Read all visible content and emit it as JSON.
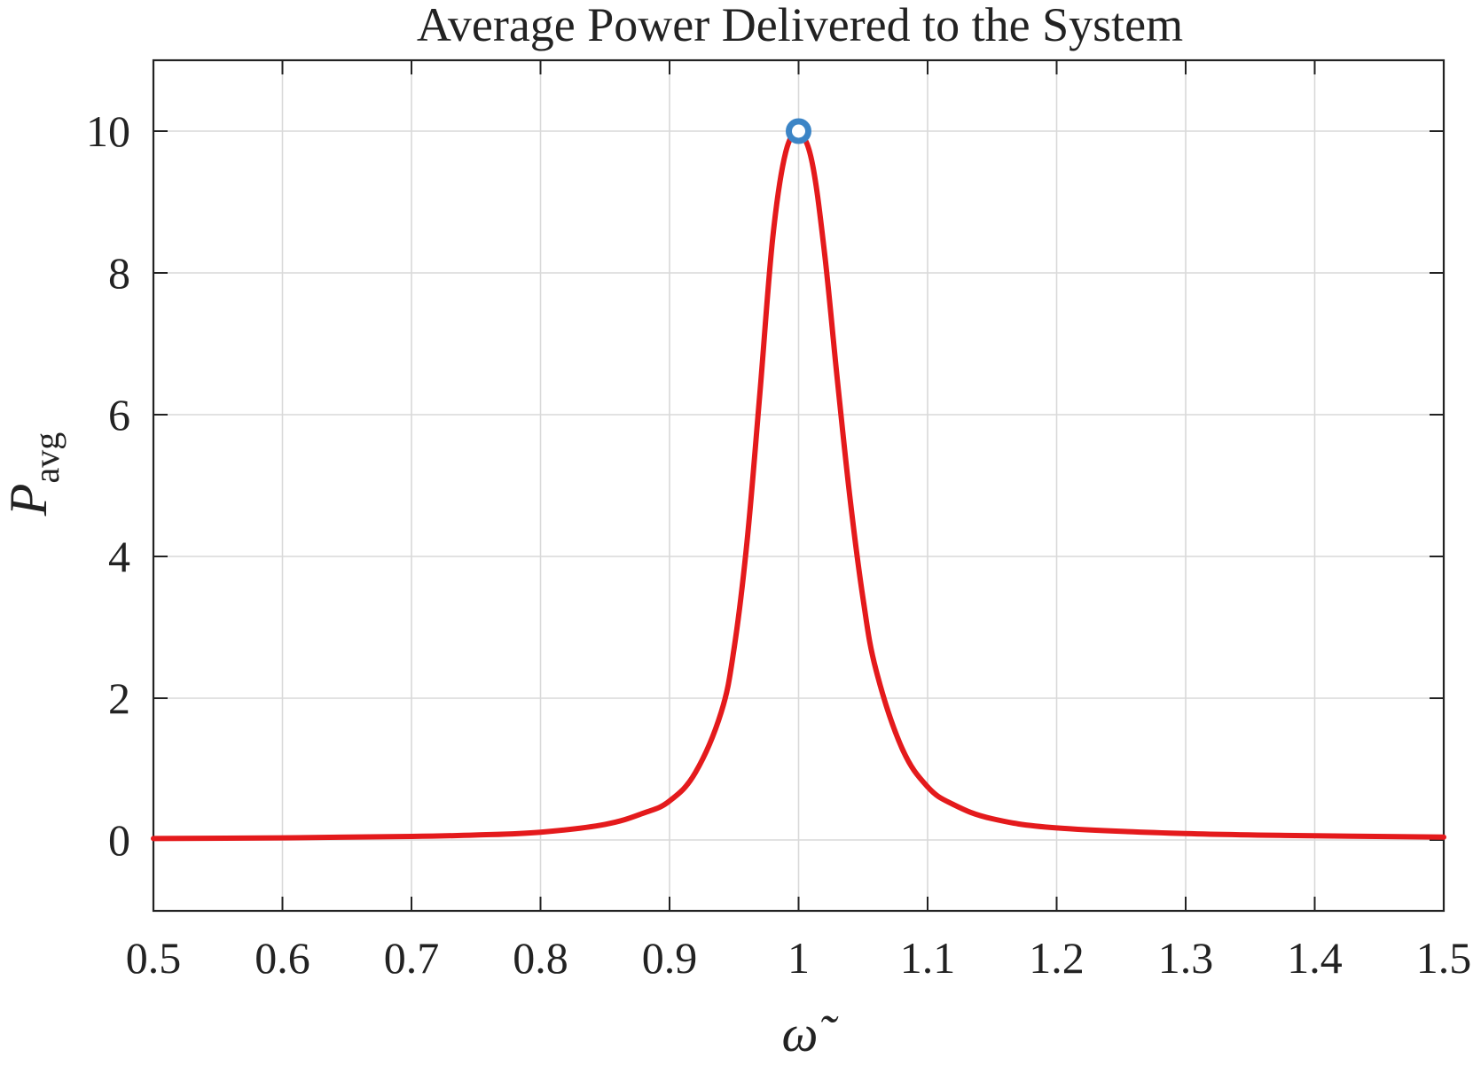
{
  "chart_data": {
    "type": "line",
    "title": "Average Power Delivered to the System",
    "xlabel": "ω̃",
    "ylabel": "P",
    "ylabel_subscript": "avg",
    "xlim": [
      0.5,
      1.5
    ],
    "ylim": [
      -1,
      11
    ],
    "x_ticks": [
      0.5,
      0.6,
      0.7,
      0.8,
      0.9,
      1.0,
      1.1,
      1.2,
      1.3,
      1.4,
      1.5
    ],
    "x_tick_labels": [
      "0.5",
      "0.6",
      "0.7",
      "0.8",
      "0.9",
      "1",
      "1.1",
      "1.2",
      "1.3",
      "1.4",
      "1.5"
    ],
    "y_ticks": [
      0,
      2,
      4,
      6,
      8,
      10
    ],
    "y_tick_labels": [
      "0",
      "2",
      "4",
      "6",
      "8",
      "10"
    ],
    "grid": true,
    "legend": "none",
    "series": [
      {
        "color": "#e41a1c",
        "x": [
          0.5,
          0.6,
          0.7,
          0.75,
          0.8,
          0.85,
          0.88,
          0.9,
          0.92,
          0.94,
          0.95,
          0.96,
          0.97,
          0.98,
          0.99,
          1.0,
          1.01,
          1.02,
          1.03,
          1.04,
          1.05,
          1.06,
          1.08,
          1.1,
          1.12,
          1.15,
          1.2,
          1.3,
          1.4,
          1.5
        ],
        "y": [
          0.02,
          0.03,
          0.05,
          0.07,
          0.11,
          0.22,
          0.38,
          0.55,
          0.95,
          1.8,
          2.7,
          4.2,
          6.3,
          8.5,
          9.7,
          9.95,
          9.6,
          8.3,
          6.5,
          4.8,
          3.4,
          2.4,
          1.3,
          0.75,
          0.5,
          0.3,
          0.17,
          0.09,
          0.06,
          0.04
        ]
      }
    ],
    "marker": {
      "x": 1.0,
      "y": 10.0,
      "color": "#3c85c6",
      "shape": "circle-open"
    }
  }
}
